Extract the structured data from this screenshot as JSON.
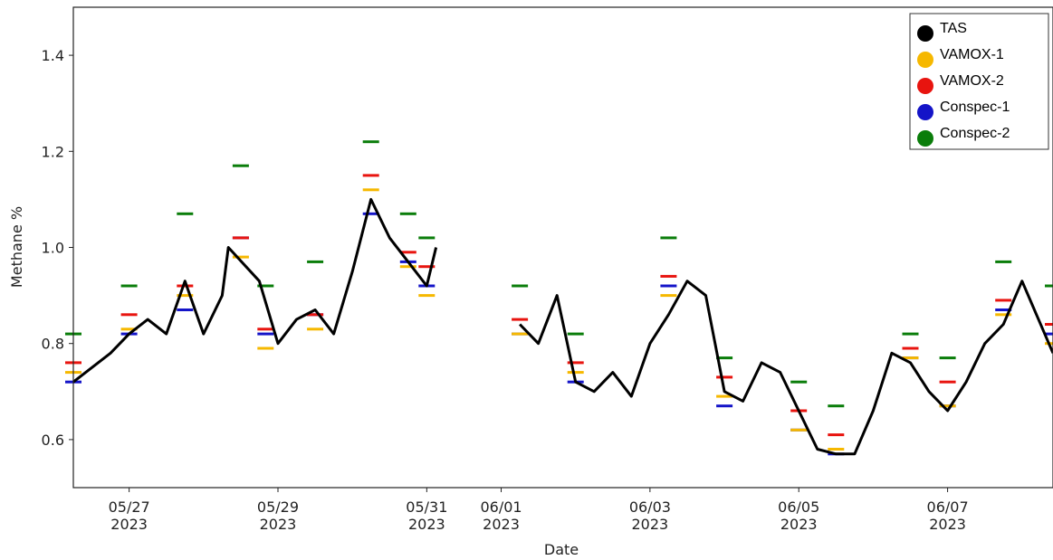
{
  "chart_data": {
    "type": "scatter",
    "title": "",
    "xlabel": "Date",
    "ylabel": "Methane %",
    "xlim": [
      "2023-05-26T06:00",
      "2023-06-08T10:00"
    ],
    "ylim": [
      0.5,
      1.5
    ],
    "grid": false,
    "legend_position": "top-right",
    "y_ticks": [
      0.6,
      0.8,
      1.0,
      1.2,
      1.4
    ],
    "y_tick_labels": [
      "0.6",
      "0.8",
      "1.0",
      "1.2",
      "1.4"
    ],
    "x_ticks": [
      {
        "date": "2023-05-27",
        "line1": "05/27",
        "line2": "2023"
      },
      {
        "date": "2023-05-29",
        "line1": "05/29",
        "line2": "2023"
      },
      {
        "date": "2023-05-31",
        "line1": "05/31",
        "line2": "2023"
      },
      {
        "date": "2023-06-01",
        "line1": "06/01",
        "line2": "2023"
      },
      {
        "date": "2023-06-03",
        "line1": "06/03",
        "line2": "2023"
      },
      {
        "date": "2023-06-05",
        "line1": "06/05",
        "line2": "2023"
      },
      {
        "date": "2023-06-07",
        "line1": "06/07",
        "line2": "2023"
      }
    ],
    "series": [
      {
        "name": "TAS",
        "color": "#000000",
        "x": [
          "2023-05-26T06:00",
          "2023-05-26T18:00",
          "2023-05-27T00:00",
          "2023-05-27T06:00",
          "2023-05-27T12:00",
          "2023-05-27T18:00",
          "2023-05-28T00:00",
          "2023-05-28T06:00",
          "2023-05-28T08:00",
          "2023-05-28T18:00",
          "2023-05-29T00:00",
          "2023-05-29T06:00",
          "2023-05-29T12:00",
          "2023-05-29T18:00",
          "2023-05-30T00:00",
          "2023-05-30T06:00",
          "2023-05-30T12:00",
          "2023-05-30T18:00",
          "2023-05-31T00:00",
          "2023-05-31T03:00",
          "2023-06-01T06:00",
          "2023-06-01T12:00",
          "2023-06-01T18:00",
          "2023-06-02T00:00",
          "2023-06-02T06:00",
          "2023-06-02T12:00",
          "2023-06-02T18:00",
          "2023-06-03T00:00",
          "2023-06-03T06:00",
          "2023-06-03T12:00",
          "2023-06-03T18:00",
          "2023-06-04T00:00",
          "2023-06-04T06:00",
          "2023-06-04T12:00",
          "2023-06-04T18:00",
          "2023-06-05T00:00",
          "2023-06-05T06:00",
          "2023-06-05T12:00",
          "2023-06-05T18:00",
          "2023-06-06T00:00",
          "2023-06-06T06:00",
          "2023-06-06T12:00",
          "2023-06-06T18:00",
          "2023-06-07T00:00",
          "2023-06-07T06:00",
          "2023-06-07T12:00",
          "2023-06-07T18:00",
          "2023-06-08T00:00",
          "2023-06-08T10:00"
        ],
        "y": [
          0.72,
          0.78,
          0.82,
          0.85,
          0.82,
          0.93,
          0.82,
          0.9,
          1.0,
          0.93,
          0.8,
          0.85,
          0.87,
          0.82,
          0.95,
          1.1,
          1.02,
          0.97,
          0.92,
          1.0,
          0.84,
          0.8,
          0.9,
          0.72,
          0.7,
          0.74,
          0.69,
          0.8,
          0.86,
          0.93,
          0.9,
          0.7,
          0.68,
          0.76,
          0.74,
          0.66,
          0.58,
          0.57,
          0.57,
          0.66,
          0.78,
          0.76,
          0.7,
          0.66,
          0.72,
          0.8,
          0.84,
          0.93,
          0.78
        ]
      },
      {
        "name": "VAMOX-1",
        "color": "#f6b800",
        "x": [
          "2023-05-26T06:00",
          "2023-05-27T00:00",
          "2023-05-27T18:00",
          "2023-05-28T12:00",
          "2023-05-28T20:00",
          "2023-05-29T12:00",
          "2023-05-30T06:00",
          "2023-05-30T18:00",
          "2023-05-31T00:00",
          "2023-06-01T06:00",
          "2023-06-02T00:00",
          "2023-06-03T06:00",
          "2023-06-04T00:00",
          "2023-06-05T00:00",
          "2023-06-05T12:00",
          "2023-06-06T12:00",
          "2023-06-07T00:00",
          "2023-06-07T18:00",
          "2023-06-08T10:00"
        ],
        "y": [
          0.74,
          0.83,
          0.9,
          0.98,
          0.79,
          0.83,
          1.12,
          0.96,
          0.9,
          0.82,
          0.74,
          0.9,
          0.69,
          0.62,
          0.58,
          0.77,
          0.67,
          0.86,
          0.8
        ]
      },
      {
        "name": "VAMOX-2",
        "color": "#e8140f",
        "x": [
          "2023-05-26T06:00",
          "2023-05-27T00:00",
          "2023-05-27T18:00",
          "2023-05-28T12:00",
          "2023-05-28T20:00",
          "2023-05-29T12:00",
          "2023-05-30T06:00",
          "2023-05-30T18:00",
          "2023-05-31T00:00",
          "2023-06-01T06:00",
          "2023-06-02T00:00",
          "2023-06-03T06:00",
          "2023-06-04T00:00",
          "2023-06-05T00:00",
          "2023-06-05T12:00",
          "2023-06-06T12:00",
          "2023-06-07T00:00",
          "2023-06-07T18:00",
          "2023-06-08T10:00"
        ],
        "y": [
          0.76,
          0.86,
          0.92,
          1.02,
          0.83,
          0.86,
          1.15,
          0.99,
          0.96,
          0.85,
          0.76,
          0.94,
          0.73,
          0.66,
          0.61,
          0.79,
          0.72,
          0.89,
          0.84
        ]
      },
      {
        "name": "Conspec-1",
        "color": "#1414c8",
        "x": [
          "2023-05-26T06:00",
          "2023-05-27T00:00",
          "2023-05-27T18:00",
          "2023-05-28T12:00",
          "2023-05-28T20:00",
          "2023-05-29T12:00",
          "2023-05-30T06:00",
          "2023-05-30T18:00",
          "2023-05-31T00:00",
          "2023-06-01T06:00",
          "2023-06-02T00:00",
          "2023-06-03T06:00",
          "2023-06-04T00:00",
          "2023-06-05T00:00",
          "2023-06-05T12:00",
          "2023-06-06T12:00",
          "2023-06-07T00:00",
          "2023-06-07T18:00",
          "2023-06-08T10:00"
        ],
        "y": [
          0.72,
          0.82,
          0.87,
          1.02,
          0.82,
          0.86,
          1.07,
          0.97,
          0.92,
          0.82,
          0.72,
          0.92,
          0.67,
          0.62,
          0.57,
          0.77,
          0.67,
          0.87,
          0.82
        ]
      },
      {
        "name": "Conspec-2",
        "color": "#0a7d0a",
        "x": [
          "2023-05-26T06:00",
          "2023-05-27T00:00",
          "2023-05-27T18:00",
          "2023-05-28T12:00",
          "2023-05-28T20:00",
          "2023-05-29T12:00",
          "2023-05-30T06:00",
          "2023-05-30T18:00",
          "2023-05-31T00:00",
          "2023-06-01T06:00",
          "2023-06-02T00:00",
          "2023-06-03T06:00",
          "2023-06-04T00:00",
          "2023-06-05T00:00",
          "2023-06-05T12:00",
          "2023-06-06T12:00",
          "2023-06-07T00:00",
          "2023-06-07T18:00",
          "2023-06-08T10:00"
        ],
        "y": [
          0.82,
          0.92,
          1.07,
          1.17,
          0.92,
          0.97,
          1.22,
          1.07,
          1.02,
          0.92,
          0.82,
          1.02,
          0.77,
          0.72,
          0.67,
          0.82,
          0.77,
          0.97,
          0.92
        ]
      }
    ]
  }
}
